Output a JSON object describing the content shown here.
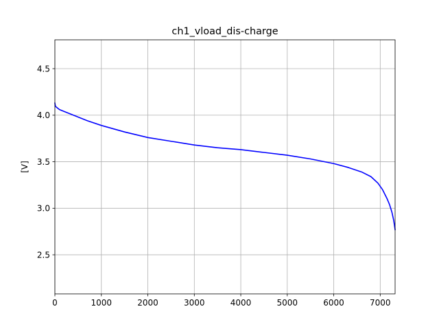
{
  "chart_data": {
    "type": "line",
    "title": "ch1_vload_dis-charge",
    "xlabel": "",
    "ylabel": "[V]",
    "xlim": [
      0,
      7320
    ],
    "ylim": [
      2.08,
      4.81
    ],
    "xticks": [
      0,
      1000,
      2000,
      3000,
      4000,
      5000,
      6000,
      7000
    ],
    "yticks": [
      2.5,
      3.0,
      3.5,
      4.0,
      4.5
    ],
    "xtick_labels": [
      "0",
      "1000",
      "2000",
      "3000",
      "4000",
      "5000",
      "6000",
      "7000"
    ],
    "ytick_labels": [
      "2.5",
      "3.0",
      "3.5",
      "4.0",
      "4.5"
    ],
    "grid": true,
    "series": [
      {
        "color": "#0000ff",
        "x": [
          0,
          10,
          25,
          50,
          100,
          200,
          400,
          700,
          1000,
          1500,
          2000,
          2500,
          3000,
          3500,
          4000,
          4500,
          5000,
          5500,
          6000,
          6300,
          6600,
          6800,
          6950,
          7050,
          7150,
          7200,
          7250,
          7290,
          7320
        ],
        "y": [
          4.13,
          4.1,
          4.09,
          4.08,
          4.06,
          4.04,
          4.0,
          3.94,
          3.89,
          3.82,
          3.76,
          3.72,
          3.68,
          3.65,
          3.63,
          3.6,
          3.57,
          3.53,
          3.48,
          3.44,
          3.39,
          3.34,
          3.27,
          3.2,
          3.1,
          3.04,
          2.96,
          2.87,
          2.77
        ]
      }
    ]
  }
}
